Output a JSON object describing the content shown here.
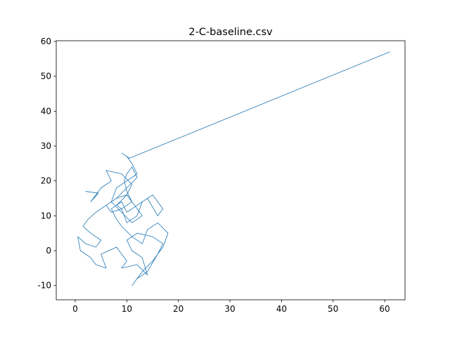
{
  "chart_data": {
    "type": "line",
    "title": "2-C-baseline.csv",
    "x": [
      2,
      4.5,
      3,
      5,
      7,
      6,
      9,
      11,
      10,
      8,
      6,
      4,
      2.5,
      1.5,
      3,
      5,
      4,
      2,
      0.5,
      1,
      3,
      4,
      6,
      5,
      8,
      10,
      9,
      12,
      14,
      13,
      11,
      10,
      12,
      15,
      17,
      16,
      14,
      12,
      11,
      13,
      15,
      17,
      18,
      16,
      14,
      13,
      11,
      9,
      8,
      7,
      9,
      10,
      12,
      14,
      16,
      17,
      15,
      13,
      12,
      10,
      9,
      11,
      10,
      9.5,
      10,
      11,
      12,
      10,
      8,
      6,
      7,
      9,
      8,
      10,
      11,
      12,
      13,
      11,
      9,
      7,
      8,
      10,
      12,
      11,
      10,
      9,
      10.5,
      61
    ],
    "values": [
      17,
      16.5,
      14,
      18,
      20,
      23,
      22,
      19,
      16,
      15,
      13,
      11,
      9,
      7,
      5,
      3,
      1,
      2,
      4,
      0,
      -2,
      -4,
      -5,
      -1,
      1,
      -3,
      -5,
      -4,
      -7,
      -2,
      0,
      3,
      5,
      4,
      2,
      -1,
      -6,
      -8,
      -10,
      -6,
      -3,
      1,
      5,
      8,
      6,
      2,
      4,
      7,
      9,
      12,
      14,
      11,
      13,
      15,
      10,
      12,
      16,
      14,
      10,
      8,
      12,
      14,
      17,
      20,
      22,
      24,
      21,
      18,
      15,
      13,
      11,
      12,
      13,
      16,
      14,
      12,
      10,
      8,
      11,
      14,
      18,
      20,
      22,
      25,
      27,
      28,
      26.5,
      57
    ],
    "color": "#1f77b4",
    "xlim": [
      -3.68,
      63.95
    ],
    "xticks": [
      0,
      10,
      20,
      30,
      40,
      50,
      60
    ],
    "ylim": [
      -14.09,
      60.2
    ],
    "yticks": [
      -10,
      0,
      10,
      20,
      30,
      40,
      50,
      60
    ]
  }
}
